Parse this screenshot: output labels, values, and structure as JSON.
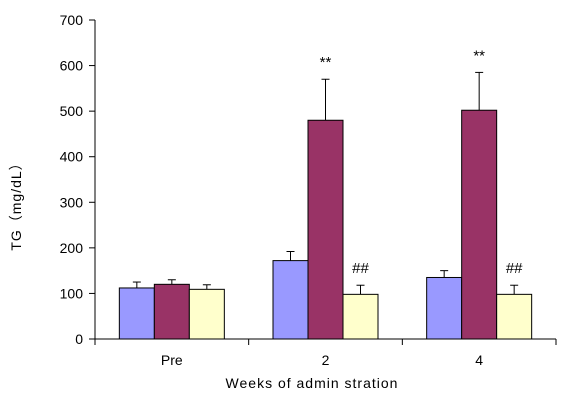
{
  "chart_data": {
    "type": "bar",
    "title": "",
    "xlabel": "Weeks of admin stration",
    "ylabel": "TG（mg/dL）",
    "categories": [
      "Pre",
      "2",
      "4"
    ],
    "ylim": [
      0,
      700
    ],
    "yticks": [
      0,
      100,
      200,
      300,
      400,
      500,
      600,
      700
    ],
    "grid": false,
    "legend": "none",
    "series": [
      {
        "values": [
          112,
          172,
          135
        ],
        "errors": [
          13,
          20,
          15
        ],
        "color": "#9999ff"
      },
      {
        "values": [
          120,
          480,
          502
        ],
        "errors": [
          10,
          90,
          83
        ],
        "color": "#993366"
      },
      {
        "values": [
          109,
          98,
          98
        ],
        "errors": [
          10,
          20,
          20
        ],
        "color": "#ffffcc"
      }
    ],
    "annotations": [
      {
        "category": 1,
        "series": 1,
        "text": "**"
      },
      {
        "category": 2,
        "series": 1,
        "text": "**"
      },
      {
        "category": 1,
        "series": 2,
        "text": "##"
      },
      {
        "category": 2,
        "series": 2,
        "text": "##"
      }
    ]
  }
}
